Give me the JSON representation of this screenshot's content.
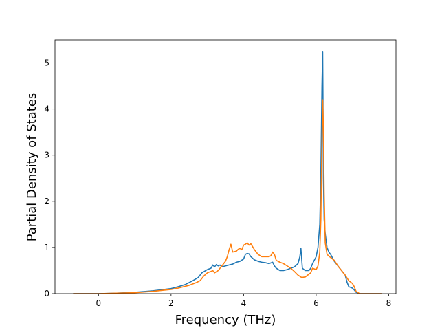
{
  "chart_data": {
    "type": "line",
    "title": "",
    "xlabel": "Frequency (THz)",
    "ylabel": "Partial Density of States",
    "xlim": [
      -1.2,
      8.2
    ],
    "ylim": [
      0,
      5.5
    ],
    "xticks": [
      0,
      2,
      4,
      6,
      8
    ],
    "xtick_labels": [
      "0",
      "2",
      "4",
      "6",
      "8"
    ],
    "yticks": [
      0,
      1,
      2,
      3,
      4,
      5
    ],
    "ytick_labels": [
      "0",
      "1",
      "2",
      "3",
      "4",
      "5"
    ],
    "grid": false,
    "legend": "none",
    "series": [
      {
        "color": "#1f77b4",
        "x": [
          -0.7,
          0,
          0.5,
          1.0,
          1.5,
          2.0,
          2.2,
          2.4,
          2.6,
          2.75,
          2.85,
          3.0,
          3.1,
          3.15,
          3.2,
          3.25,
          3.3,
          3.35,
          3.4,
          3.5,
          3.6,
          3.7,
          3.8,
          3.9,
          4.0,
          4.05,
          4.1,
          4.15,
          4.2,
          4.3,
          4.4,
          4.5,
          4.6,
          4.7,
          4.8,
          4.85,
          4.9,
          5.0,
          5.1,
          5.2,
          5.3,
          5.4,
          5.5,
          5.55,
          5.58,
          5.62,
          5.7,
          5.8,
          5.85,
          5.9,
          6.0,
          6.05,
          6.1,
          6.13,
          6.16,
          6.18,
          6.19,
          6.2,
          6.22,
          6.25,
          6.3,
          6.35,
          6.4,
          6.5,
          6.6,
          6.7,
          6.8,
          6.85,
          6.9,
          7.0,
          7.05,
          7.1,
          7.2,
          7.5,
          7.8
        ],
        "y": [
          0,
          0,
          0.01,
          0.03,
          0.06,
          0.11,
          0.15,
          0.2,
          0.28,
          0.35,
          0.45,
          0.52,
          0.55,
          0.62,
          0.58,
          0.63,
          0.6,
          0.62,
          0.58,
          0.6,
          0.62,
          0.64,
          0.68,
          0.7,
          0.75,
          0.85,
          0.87,
          0.86,
          0.8,
          0.73,
          0.7,
          0.68,
          0.67,
          0.65,
          0.68,
          0.6,
          0.55,
          0.5,
          0.5,
          0.52,
          0.55,
          0.58,
          0.65,
          0.8,
          0.98,
          0.55,
          0.5,
          0.5,
          0.55,
          0.65,
          0.8,
          1.0,
          1.5,
          2.6,
          4.5,
          5.25,
          4.0,
          2.5,
          1.6,
          1.3,
          1.0,
          0.9,
          0.85,
          0.7,
          0.6,
          0.5,
          0.4,
          0.25,
          0.15,
          0.12,
          0.08,
          0.03,
          0,
          0,
          0
        ]
      },
      {
        "color": "#ff7f0e",
        "x": [
          -0.7,
          0,
          0.5,
          1.0,
          1.5,
          2.0,
          2.2,
          2.5,
          2.7,
          2.8,
          2.9,
          3.0,
          3.1,
          3.15,
          3.2,
          3.3,
          3.4,
          3.5,
          3.55,
          3.6,
          3.65,
          3.7,
          3.8,
          3.85,
          3.9,
          3.95,
          4.0,
          4.05,
          4.1,
          4.15,
          4.2,
          4.3,
          4.4,
          4.5,
          4.6,
          4.7,
          4.75,
          4.8,
          4.85,
          4.9,
          5.0,
          5.1,
          5.2,
          5.3,
          5.4,
          5.5,
          5.6,
          5.7,
          5.8,
          5.85,
          5.9,
          6.0,
          6.05,
          6.1,
          6.13,
          6.15,
          6.17,
          6.18,
          6.2,
          6.22,
          6.25,
          6.3,
          6.4,
          6.5,
          6.6,
          6.7,
          6.8,
          6.9,
          7.0,
          7.05,
          7.1,
          7.2,
          7.5,
          7.8
        ],
        "y": [
          0,
          0,
          0.01,
          0.02,
          0.05,
          0.09,
          0.12,
          0.18,
          0.24,
          0.28,
          0.38,
          0.45,
          0.48,
          0.5,
          0.45,
          0.5,
          0.6,
          0.7,
          0.8,
          0.95,
          1.07,
          0.9,
          0.92,
          0.96,
          0.98,
          0.95,
          1.05,
          1.07,
          1.1,
          1.05,
          1.08,
          0.95,
          0.85,
          0.8,
          0.8,
          0.8,
          0.82,
          0.9,
          0.85,
          0.72,
          0.68,
          0.65,
          0.6,
          0.55,
          0.48,
          0.4,
          0.35,
          0.36,
          0.42,
          0.45,
          0.55,
          0.52,
          0.6,
          0.9,
          1.6,
          2.8,
          3.8,
          4.2,
          3.6,
          2.2,
          1.1,
          0.85,
          0.78,
          0.72,
          0.6,
          0.5,
          0.4,
          0.28,
          0.22,
          0.15,
          0.05,
          0,
          0,
          0
        ]
      }
    ]
  }
}
